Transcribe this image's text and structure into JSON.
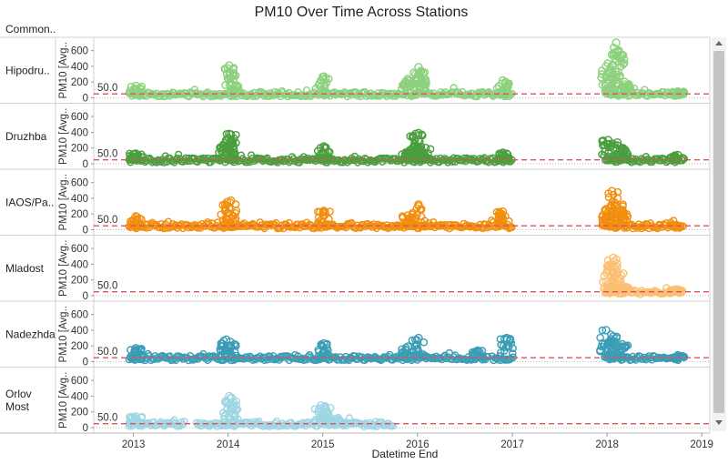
{
  "chart_data": {
    "type": "scatter",
    "title": "PM10 Over Time Across Stations",
    "column_header": "Common..",
    "xlabel": "Datetime End",
    "ylabel": "PM10 [Avg..",
    "x_ticks": [
      "2013",
      "2014",
      "2015",
      "2016",
      "2017",
      "2018",
      "2019"
    ],
    "y_ticks": [
      "0",
      "200",
      "400",
      "600"
    ],
    "ylim": [
      0,
      700
    ],
    "xlim": [
      "2012-08-01",
      "2019-02-01"
    ],
    "reference_line": {
      "value": 50,
      "label": "50.0"
    },
    "series": [
      {
        "name": "Hipodru..",
        "color": "#8dd17e",
        "segments": [
          [
            "2012-12-15",
            "2016-12-31"
          ],
          [
            "2017-12-25",
            "2018-10-10"
          ]
        ],
        "peaks": [
          [
            "2013-01-10",
            150
          ],
          [
            "2014-01-05",
            410
          ],
          [
            "2014-01-20",
            360
          ],
          [
            "2015-01-05",
            270
          ],
          [
            "2015-11-25",
            240
          ],
          [
            "2016-01-05",
            390
          ],
          [
            "2016-01-15",
            340
          ],
          [
            "2016-11-25",
            220
          ],
          [
            "2017-12-28",
            400
          ],
          [
            "2018-01-20",
            550
          ],
          [
            "2018-02-05",
            700
          ],
          [
            "2018-02-15",
            600
          ],
          [
            "2018-03-10",
            200
          ],
          [
            "2018-10-01",
            80
          ]
        ]
      },
      {
        "name": "Druzhba",
        "color": "#4a9e3e",
        "segments": [
          [
            "2012-12-15",
            "2016-12-31"
          ],
          [
            "2017-12-25",
            "2018-10-10"
          ]
        ],
        "peaks": [
          [
            "2013-01-10",
            130
          ],
          [
            "2013-12-20",
            230
          ],
          [
            "2014-01-05",
            380
          ],
          [
            "2014-01-12",
            370
          ],
          [
            "2015-01-05",
            220
          ],
          [
            "2015-11-25",
            150
          ],
          [
            "2015-12-25",
            380
          ],
          [
            "2016-01-05",
            390
          ],
          [
            "2016-02-01",
            200
          ],
          [
            "2016-11-25",
            140
          ],
          [
            "2018-01-05",
            300
          ],
          [
            "2018-02-10",
            270
          ],
          [
            "2018-03-01",
            200
          ],
          [
            "2018-10-01",
            110
          ]
        ]
      },
      {
        "name": "IAOS/Pa..",
        "color": "#f28e0e",
        "segments": [
          [
            "2012-12-15",
            "2016-12-31"
          ],
          [
            "2017-12-25",
            "2018-10-10"
          ]
        ],
        "peaks": [
          [
            "2013-01-10",
            170
          ],
          [
            "2013-12-28",
            350
          ],
          [
            "2014-01-12",
            370
          ],
          [
            "2015-01-05",
            240
          ],
          [
            "2015-11-25",
            180
          ],
          [
            "2016-01-05",
            320
          ],
          [
            "2016-11-25",
            230
          ],
          [
            "2017-12-28",
            260
          ],
          [
            "2018-01-20",
            490
          ],
          [
            "2018-02-10",
            400
          ],
          [
            "2018-03-01",
            250
          ],
          [
            "2018-10-01",
            50
          ]
        ]
      },
      {
        "name": "Mladost",
        "color": "#fbbf74",
        "segments": [
          [
            "2017-12-25",
            "2018-10-10"
          ]
        ],
        "peaks": [
          [
            "2018-01-05",
            380
          ],
          [
            "2018-01-25",
            480
          ],
          [
            "2018-02-10",
            300
          ],
          [
            "2018-03-01",
            120
          ],
          [
            "2018-09-25",
            80
          ]
        ]
      },
      {
        "name": "Nadezhda",
        "color": "#3a9db5",
        "segments": [
          [
            "2012-12-15",
            "2016-07-31"
          ],
          [
            "2016-08-10",
            "2016-09-30"
          ],
          [
            "2016-10-15",
            "2016-12-31"
          ],
          [
            "2017-12-25",
            "2018-10-10"
          ]
        ],
        "peaks": [
          [
            "2013-01-10",
            170
          ],
          [
            "2013-12-25",
            280
          ],
          [
            "2014-01-10",
            250
          ],
          [
            "2015-01-05",
            230
          ],
          [
            "2015-11-25",
            190
          ],
          [
            "2016-01-05",
            300
          ],
          [
            "2016-08-20",
            140
          ],
          [
            "2016-12-10",
            300
          ],
          [
            "2017-12-28",
            400
          ],
          [
            "2018-01-25",
            320
          ],
          [
            "2018-03-01",
            220
          ],
          [
            "2018-10-01",
            80
          ]
        ]
      },
      {
        "name": "Orlov\nMost",
        "color": "#9fd6e3",
        "segments": [
          [
            "2012-12-15",
            "2013-07-20"
          ],
          [
            "2013-09-01",
            "2015-09-30"
          ]
        ],
        "peaks": [
          [
            "2013-01-10",
            140
          ],
          [
            "2014-01-05",
            400
          ],
          [
            "2014-01-15",
            380
          ],
          [
            "2014-12-25",
            280
          ],
          [
            "2015-01-10",
            270
          ],
          [
            "2015-03-01",
            120
          ]
        ]
      }
    ]
  }
}
